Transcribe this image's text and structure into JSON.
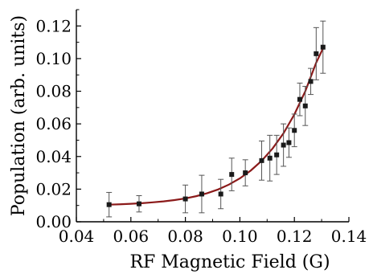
{
  "chart_data": {
    "type": "scatter",
    "xlabel": "RF Magnetic Field (G)",
    "ylabel": "Population (arb. units)",
    "xlim": [
      0.04,
      0.14
    ],
    "ylim": [
      0.0,
      0.13
    ],
    "xticks": [
      "0.04",
      "0.06",
      "0.08",
      "0.10",
      "0.12",
      "0.14"
    ],
    "yticks": [
      "0.00",
      "0.02",
      "0.04",
      "0.06",
      "0.08",
      "0.10",
      "0.12"
    ],
    "grid": false,
    "marker_color": "#1a1a1a",
    "errorbar_color": "#555555",
    "fit_color": "#8b1a1a",
    "series": [
      {
        "kind": "points-with-error",
        "points": [
          {
            "x": 0.052,
            "y": 0.0105,
            "err": 0.0075
          },
          {
            "x": 0.063,
            "y": 0.011,
            "err": 0.005
          },
          {
            "x": 0.08,
            "y": 0.014,
            "err": 0.0085
          },
          {
            "x": 0.086,
            "y": 0.017,
            "err": 0.0115
          },
          {
            "x": 0.093,
            "y": 0.017,
            "err": 0.009
          },
          {
            "x": 0.097,
            "y": 0.029,
            "err": 0.01
          },
          {
            "x": 0.102,
            "y": 0.03,
            "err": 0.008
          },
          {
            "x": 0.108,
            "y": 0.0375,
            "err": 0.012
          },
          {
            "x": 0.111,
            "y": 0.039,
            "err": 0.014
          },
          {
            "x": 0.1135,
            "y": 0.041,
            "err": 0.012
          },
          {
            "x": 0.116,
            "y": 0.047,
            "err": 0.013
          },
          {
            "x": 0.118,
            "y": 0.0485,
            "err": 0.009
          },
          {
            "x": 0.12,
            "y": 0.056,
            "err": 0.01
          },
          {
            "x": 0.122,
            "y": 0.075,
            "err": 0.01
          },
          {
            "x": 0.124,
            "y": 0.071,
            "err": 0.012
          },
          {
            "x": 0.126,
            "y": 0.086,
            "err": 0.008
          },
          {
            "x": 0.128,
            "y": 0.103,
            "err": 0.016
          },
          {
            "x": 0.1305,
            "y": 0.107,
            "err": 0.016
          }
        ]
      },
      {
        "kind": "fit-line",
        "x": [
          0.052,
          0.056,
          0.06,
          0.064,
          0.068,
          0.072,
          0.076,
          0.08,
          0.084,
          0.088,
          0.092,
          0.096,
          0.1,
          0.104,
          0.108,
          0.112,
          0.116,
          0.12,
          0.124,
          0.128,
          0.131
        ],
        "y": [
          0.0105,
          0.0107,
          0.011,
          0.0114,
          0.0119,
          0.0125,
          0.0133,
          0.0143,
          0.0157,
          0.0175,
          0.0198,
          0.0228,
          0.0266,
          0.0314,
          0.0374,
          0.0449,
          0.0542,
          0.0658,
          0.08,
          0.0975,
          0.108
        ]
      }
    ]
  }
}
